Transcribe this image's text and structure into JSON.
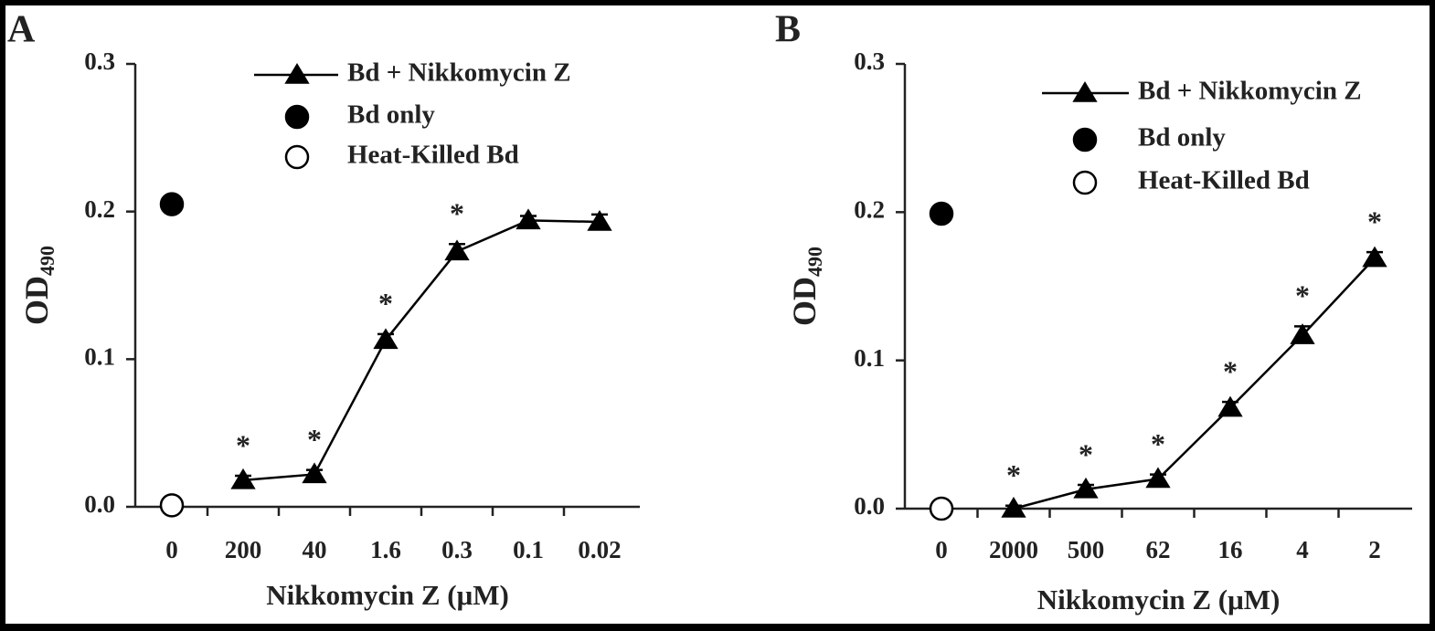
{
  "chart_data": [
    {
      "type": "line",
      "panel_label": "A",
      "xlabel": "Nikkomycin Z (μM)",
      "ylabel": "OD",
      "ylabel_sub": "490",
      "categories": [
        "0",
        "200",
        "40",
        "1.6",
        "0.3",
        "0.1",
        "0.02"
      ],
      "ylim": [
        0,
        0.3
      ],
      "yticks": [
        {
          "value": 0,
          "label": "0.0"
        },
        0.1,
        0.2,
        0.3
      ],
      "series": [
        {
          "name": "Bd + Nikkomycin Z",
          "color": "#000000",
          "marker": "triangle",
          "line": true,
          "values": [
            null,
            0.018,
            0.022,
            0.113,
            0.173,
            0.194,
            0.193
          ],
          "errors": [
            null,
            0.003,
            0.003,
            0.004,
            0.005,
            0.003,
            0.005
          ],
          "significance": [
            null,
            "*",
            "*",
            "*",
            "*",
            null,
            null
          ]
        },
        {
          "name": "Bd only",
          "color": "#000000",
          "marker": "circle",
          "line": false,
          "values": [
            0.205,
            null,
            null,
            null,
            null,
            null,
            null
          ]
        },
        {
          "name": "Heat-Killed Bd",
          "color": "#000000",
          "fill": "#ffffff",
          "marker": "circle",
          "line": false,
          "values": [
            0.001,
            null,
            null,
            null,
            null,
            null,
            null
          ]
        }
      ]
    },
    {
      "type": "line",
      "panel_label": "B",
      "xlabel": "Nikkomycin Z (μM)",
      "ylabel": "OD",
      "ylabel_sub": "490",
      "categories": [
        "0",
        "2000",
        "500",
        "62",
        "16",
        "4",
        "2"
      ],
      "ylim": [
        0,
        0.3
      ],
      "yticks": [
        {
          "value": 0,
          "label": "0.0"
        },
        0.1,
        0.2,
        0.3
      ],
      "series": [
        {
          "name": "Bd + Nikkomycin Z",
          "color": "#000000",
          "marker": "triangle",
          "line": true,
          "values": [
            null,
            0.0,
            0.013,
            0.02,
            0.068,
            0.117,
            0.169
          ],
          "errors": [
            null,
            0.002,
            0.003,
            0.003,
            0.004,
            0.006,
            0.004
          ],
          "significance": [
            null,
            "*",
            "*",
            "*",
            "*",
            "*",
            "*"
          ]
        },
        {
          "name": "Bd only",
          "color": "#000000",
          "marker": "circle",
          "line": false,
          "values": [
            0.199,
            null,
            null,
            null,
            null,
            null,
            null
          ]
        },
        {
          "name": "Heat-Killed Bd",
          "color": "#000000",
          "fill": "#ffffff",
          "marker": "circle",
          "line": false,
          "values": [
            0.0,
            null,
            null,
            null,
            null,
            null,
            null
          ]
        }
      ]
    }
  ]
}
